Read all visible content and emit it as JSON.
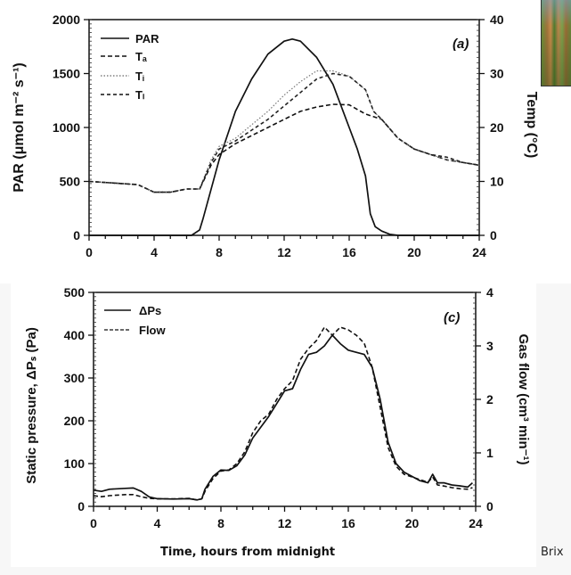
{
  "photo": {
    "description": "cattail reed photo"
  },
  "caption": {
    "xlabel": "Time, hours from midnight",
    "credit": "Brix"
  },
  "chart_data": [
    {
      "type": "line",
      "panel_label": "(a)",
      "xlabel": "",
      "ylabel": "PAR (μmol m⁻² s⁻¹)",
      "ylabel_right": "Temp (°C)",
      "xlim": [
        0,
        24
      ],
      "ylim": [
        0,
        2000
      ],
      "ylim_right": [
        0,
        40
      ],
      "xticks": [
        "0",
        "4",
        "8",
        "12",
        "16",
        "20",
        "24"
      ],
      "yticks": [
        "0",
        "500",
        "1000",
        "1500",
        "2000"
      ],
      "yticks_right": [
        "0",
        "10",
        "20",
        "30",
        "40"
      ],
      "legend": [
        "PAR",
        "Tₐ",
        "Tᵢ",
        "Tₗ"
      ],
      "legend_position": "top-left",
      "grid": false,
      "series": [
        {
          "name": "PAR",
          "axis": "left",
          "style": "solid",
          "x": [
            0,
            2,
            4,
            6,
            6.3,
            6.8,
            7,
            8,
            9,
            10,
            11,
            12,
            12.5,
            13,
            14,
            15,
            16,
            16.5,
            17,
            17.3,
            17.6,
            18,
            18.5,
            19,
            20,
            22,
            24
          ],
          "y": [
            0,
            0,
            0,
            0,
            0,
            50,
            150,
            700,
            1150,
            1450,
            1680,
            1800,
            1820,
            1800,
            1650,
            1400,
            1000,
            800,
            550,
            200,
            80,
            40,
            10,
            0,
            0,
            0,
            0
          ]
        },
        {
          "name": "Tₐ",
          "axis": "right",
          "style": "dash",
          "x": [
            0,
            1,
            2,
            3,
            4,
            5,
            6,
            6.8,
            7.5,
            8,
            9,
            10,
            11,
            12,
            13,
            14,
            15,
            16,
            17,
            17.5,
            18,
            19,
            20,
            21,
            22,
            23,
            24
          ],
          "y": [
            10,
            9.8,
            9.6,
            9.4,
            8,
            8,
            8.6,
            8.6,
            13,
            15,
            17,
            18.5,
            20,
            21.5,
            23,
            23.8,
            24.3,
            24.2,
            22.5,
            22,
            21.5,
            18,
            16,
            15,
            14,
            13.5,
            13
          ]
        },
        {
          "name": "Tᵢ",
          "axis": "right",
          "style": "dotted",
          "x": [
            0,
            1,
            2,
            3,
            4,
            5,
            6,
            6.8,
            7.5,
            8,
            9,
            10,
            11,
            12,
            13,
            13.5,
            14,
            15,
            16,
            17,
            17.5,
            18,
            19,
            20,
            21,
            22,
            23,
            24
          ],
          "y": [
            10,
            9.8,
            9.6,
            9.4,
            8,
            8,
            8.6,
            8.6,
            14,
            16.5,
            18,
            20.5,
            23,
            26,
            28.5,
            29.5,
            30.5,
            30.5,
            29.5,
            27,
            23,
            21.5,
            18,
            16,
            15,
            14,
            13.5,
            13
          ]
        },
        {
          "name": "Tₗ",
          "axis": "right",
          "style": "dash-dense",
          "x": [
            0,
            1,
            2,
            3,
            4,
            5,
            6,
            6.8,
            7.5,
            8,
            9,
            10,
            11,
            12,
            13,
            14,
            15,
            16,
            17,
            17.5,
            18,
            19,
            20,
            21,
            22,
            23,
            24
          ],
          "y": [
            10,
            9.8,
            9.6,
            9.4,
            8,
            8,
            8.6,
            8.6,
            13.5,
            16,
            17.5,
            19.5,
            21.5,
            24,
            26.5,
            29,
            30,
            29.5,
            27,
            23,
            21.5,
            18,
            16,
            15,
            14.5,
            13.5,
            13
          ]
        }
      ]
    },
    {
      "type": "line",
      "panel_label": "(c)",
      "xlabel": "Time, hours from midnight",
      "ylabel": "Static pressure, ΔPₛ (Pa)",
      "ylabel_right": "Gas flow (cm³ min⁻¹)",
      "xlim": [
        0,
        24
      ],
      "ylim": [
        0,
        500
      ],
      "ylim_right": [
        0,
        4
      ],
      "xticks": [
        "0",
        "4",
        "8",
        "12",
        "16",
        "20",
        "24"
      ],
      "yticks": [
        "0",
        "100",
        "200",
        "300",
        "400",
        "500"
      ],
      "yticks_right": [
        "0",
        "1",
        "2",
        "3",
        "4"
      ],
      "legend": [
        "ΔPs",
        "Flow"
      ],
      "legend_position": "top-left",
      "grid": false,
      "series": [
        {
          "name": "ΔPs",
          "axis": "left",
          "style": "solid",
          "x": [
            0,
            0.5,
            1,
            2,
            2.5,
            3,
            3.5,
            4,
            5,
            6,
            6.5,
            6.8,
            7,
            7.5,
            8,
            8.5,
            9,
            9.5,
            10,
            10.5,
            11,
            11.5,
            12,
            12.5,
            13,
            13.5,
            14,
            14.5,
            15,
            15.5,
            16,
            16.5,
            17,
            17.5,
            18,
            18.5,
            19,
            19.5,
            20,
            20.5,
            21,
            21.3,
            21.6,
            22,
            22.5,
            23,
            23.5,
            23.8
          ],
          "y": [
            38,
            35,
            40,
            42,
            43,
            35,
            22,
            18,
            17,
            18,
            15,
            18,
            40,
            70,
            85,
            84,
            95,
            120,
            160,
            185,
            210,
            240,
            270,
            275,
            320,
            355,
            360,
            375,
            400,
            380,
            365,
            360,
            355,
            325,
            250,
            150,
            100,
            80,
            70,
            60,
            55,
            75,
            55,
            55,
            50,
            48,
            45,
            55
          ]
        },
        {
          "name": "Flow",
          "axis": "right",
          "style": "dash",
          "x": [
            0,
            0.5,
            1,
            2,
            2.5,
            3,
            3.5,
            4,
            5,
            6,
            6.5,
            6.8,
            7,
            7.5,
            8,
            8.5,
            9,
            9.5,
            10,
            10.5,
            11,
            11.5,
            12,
            12.5,
            13,
            13.5,
            14,
            14.5,
            15,
            15.5,
            16,
            16.5,
            17,
            17.5,
            18,
            18.5,
            19,
            19.5,
            20,
            20.5,
            21,
            21.3,
            21.6,
            22,
            22.5,
            23,
            23.5,
            23.8
          ],
          "y": [
            0.2,
            0.18,
            0.2,
            0.22,
            0.22,
            0.18,
            0.15,
            0.14,
            0.14,
            0.15,
            0.12,
            0.14,
            0.28,
            0.52,
            0.66,
            0.68,
            0.8,
            1.02,
            1.38,
            1.6,
            1.72,
            2.0,
            2.2,
            2.35,
            2.75,
            2.95,
            3.1,
            3.35,
            3.2,
            3.35,
            3.3,
            3.2,
            3.05,
            2.6,
            1.85,
            1.1,
            0.75,
            0.6,
            0.55,
            0.5,
            0.45,
            0.55,
            0.4,
            0.38,
            0.35,
            0.33,
            0.32,
            0.35
          ]
        }
      ]
    }
  ]
}
